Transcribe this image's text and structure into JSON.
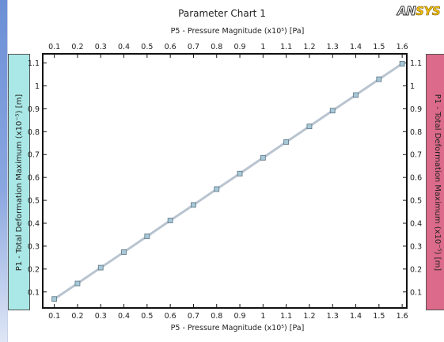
{
  "title": "Parameter Chart 1",
  "logo": {
    "prefix": "AN",
    "suffix": "SYS"
  },
  "colors": {
    "left_panel": "#a9e8e6",
    "right_panel": "#dc6a8a",
    "line": "#b9c4d0",
    "marker_fill": "#a7c8d6",
    "marker_stroke": "#5d7486"
  },
  "chart_data": {
    "type": "line",
    "x_label_top": "P5 - Pressure Magnitude  (x10⁵)  [Pa]",
    "x_label_bottom": "P5 - Pressure Magnitude  (x10⁵)  [Pa]",
    "y_label_left": "P1 - Total Deformation Maximum  (x10⁻⁵)  [m]",
    "y_label_right": "P1 - Total Deformation Maximum  (x10⁻⁵)  [m]",
    "xlim": [
      0.05,
      1.62
    ],
    "ylim": [
      0.03,
      1.14
    ],
    "x_ticks": [
      "0.1",
      "0.2",
      "0.3",
      "0.4",
      "0.5",
      "0.6",
      "0.7",
      "0.8",
      "0.9",
      "1",
      "1.1",
      "1.2",
      "1.3",
      "1.4",
      "1.5",
      "1.6"
    ],
    "y_ticks": [
      "0.1",
      "0.2",
      "0.3",
      "0.4",
      "0.5",
      "0.6",
      "0.7",
      "0.8",
      "0.9",
      "1",
      "1.1"
    ],
    "grid": false,
    "series": [
      {
        "x": [
          0.1,
          0.2,
          0.3,
          0.4,
          0.5,
          0.6,
          0.7,
          0.8,
          0.9,
          1.0,
          1.1,
          1.2,
          1.3,
          1.4,
          1.5,
          1.6
        ],
        "y": [
          0.069,
          0.137,
          0.206,
          0.274,
          0.343,
          0.412,
          0.48,
          0.549,
          0.617,
          0.686,
          0.755,
          0.823,
          0.892,
          0.96,
          1.029,
          1.097
        ]
      }
    ]
  }
}
